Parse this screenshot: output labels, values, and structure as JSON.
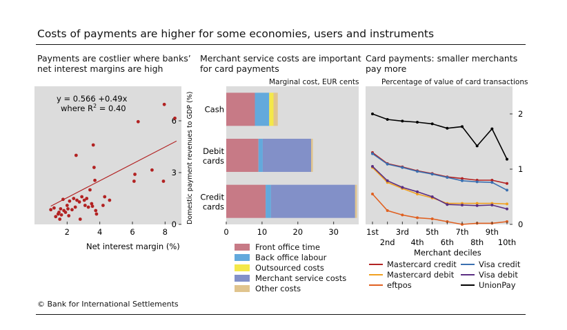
{
  "title": "Costs of payments are higher for some economies, users and instruments",
  "footer": "© Bank for International Settlements",
  "colors": {
    "panel_bg": "#dcdcdc",
    "scatter_dot": "#b22222",
    "front_office": "#c77a86",
    "back_office": "#63a9dc",
    "outsourced": "#f4e84a",
    "merchant_service": "#8290c8",
    "other": "#e0c48e",
    "mastercard_credit": "#b22222",
    "mastercard_debit": "#f0a020",
    "eftpos": "#e06020",
    "visa_credit": "#3a6fb0",
    "visa_debit": "#5a2d82",
    "unionpay": "#000000"
  },
  "panel1": {
    "title_line1": "Payments are costlier where banks’",
    "title_line2": "net interest margins are high",
    "annotation_line1": "y = 0.566 +0.49x",
    "annotation_line2_prefix": "where R",
    "annotation_line2_sup": "2",
    "annotation_line2_suffix": " = 0.40",
    "xlabel": "Net interest margin (%)",
    "ylabel": "Domestic payment revenues to GDP (%)",
    "xticks": [
      "2",
      "4",
      "6",
      "8"
    ],
    "yticks": [
      "0",
      "3",
      "6"
    ]
  },
  "panel2": {
    "title_line1": "Merchant service costs are important",
    "title_line2": "for card payments",
    "unit": "Marginal cost, EUR cents",
    "xticks": [
      "0",
      "10",
      "20",
      "30"
    ],
    "categories": [
      {
        "line1": "Cash",
        "line2": ""
      },
      {
        "line1": "Debit",
        "line2": "cards"
      },
      {
        "line1": "Credit",
        "line2": "cards"
      }
    ],
    "legend": [
      "Front office time",
      "Back office labour",
      "Outsourced costs",
      "Merchant service costs",
      "Other costs"
    ]
  },
  "panel3": {
    "title_line1": "Card payments: smaller merchants",
    "title_line2": "pay more",
    "unit": "Percentage of value of card transactions",
    "xticks_top": [
      "1st",
      "3rd",
      "5th",
      "7th",
      "9th"
    ],
    "xticks_bottom": [
      "2nd",
      "4th",
      "6th",
      "8th",
      "10th"
    ],
    "xlabel": "Merchant deciles",
    "yticks": [
      "0",
      "1",
      "2"
    ],
    "legend_col1": [
      "Mastercard credit",
      "Mastercard debit",
      "eftpos"
    ],
    "legend_col2": [
      "Visa credit",
      "Visa debit",
      "UnionPay"
    ]
  },
  "chart_data": [
    {
      "type": "scatter",
      "title": "Payments are costlier where banks’ net interest margins are high",
      "xlabel": "Net interest margin (%)",
      "ylabel": "Domestic payment revenues to GDP (%)",
      "xlim": [
        0,
        9
      ],
      "ylim": [
        0,
        8
      ],
      "grid": false,
      "points": [
        [
          1.0,
          0.85
        ],
        [
          1.2,
          0.95
        ],
        [
          1.3,
          0.45
        ],
        [
          1.45,
          0.6
        ],
        [
          1.5,
          0.7
        ],
        [
          1.55,
          0.3
        ],
        [
          1.6,
          0.9
        ],
        [
          1.65,
          0.55
        ],
        [
          1.75,
          1.45
        ],
        [
          1.8,
          0.8
        ],
        [
          1.9,
          0.7
        ],
        [
          2.0,
          1.1
        ],
        [
          2.05,
          0.9
        ],
        [
          2.1,
          0.5
        ],
        [
          2.15,
          1.35
        ],
        [
          2.3,
          0.85
        ],
        [
          2.4,
          1.5
        ],
        [
          2.5,
          1.0
        ],
        [
          2.55,
          4.0
        ],
        [
          2.6,
          1.4
        ],
        [
          2.75,
          1.3
        ],
        [
          2.8,
          0.3
        ],
        [
          2.9,
          1.6
        ],
        [
          3.05,
          1.4
        ],
        [
          3.1,
          1.1
        ],
        [
          3.2,
          1.5
        ],
        [
          3.3,
          1.0
        ],
        [
          3.4,
          2.0
        ],
        [
          3.5,
          1.2
        ],
        [
          3.55,
          1.05
        ],
        [
          3.6,
          4.6
        ],
        [
          3.65,
          3.3
        ],
        [
          3.7,
          2.55
        ],
        [
          3.75,
          0.8
        ],
        [
          3.8,
          0.6
        ],
        [
          4.2,
          1.1
        ],
        [
          4.3,
          1.6
        ],
        [
          4.6,
          1.4
        ],
        [
          6.1,
          2.5
        ],
        [
          6.15,
          2.9
        ],
        [
          6.35,
          5.95
        ],
        [
          7.2,
          3.15
        ],
        [
          7.9,
          2.5
        ],
        [
          7.95,
          6.95
        ],
        [
          8.6,
          6.15
        ]
      ],
      "trendline": {
        "intercept": 0.566,
        "slope": 0.49,
        "x_range": [
          1.0,
          8.7
        ]
      }
    },
    {
      "type": "bar",
      "orientation": "horizontal",
      "stacked": true,
      "title": "Merchant service costs are important for card payments",
      "unit": "Marginal cost, EUR cents",
      "categories": [
        "Cash",
        "Debit cards",
        "Credit cards"
      ],
      "xlim": [
        0,
        37
      ],
      "series": [
        {
          "name": "Front office time",
          "values": [
            8,
            9,
            11
          ]
        },
        {
          "name": "Back office labour",
          "values": [
            4,
            1.2,
            1.5
          ]
        },
        {
          "name": "Outsourced costs",
          "values": [
            1.2,
            0,
            0
          ]
        },
        {
          "name": "Merchant service costs",
          "values": [
            0,
            13.5,
            23.5
          ]
        },
        {
          "name": "Other costs",
          "values": [
            1.2,
            0.5,
            0.5
          ]
        }
      ]
    },
    {
      "type": "line",
      "title": "Card payments: smaller merchants pay more",
      "unit": "Percentage of value of card transactions",
      "xlabel": "Merchant deciles",
      "categories": [
        "1st",
        "2nd",
        "3rd",
        "4th",
        "5th",
        "6th",
        "7th",
        "8th",
        "9th",
        "10th"
      ],
      "ylim": [
        0,
        2.5
      ],
      "series": [
        {
          "name": "Mastercard credit",
          "values": [
            1.3,
            1.1,
            1.04,
            0.97,
            0.92,
            0.86,
            0.83,
            0.8,
            0.8,
            0.74
          ]
        },
        {
          "name": "Visa credit",
          "values": [
            1.28,
            1.09,
            1.03,
            0.96,
            0.91,
            0.85,
            0.79,
            0.77,
            0.76,
            0.62
          ]
        },
        {
          "name": "Mastercard debit",
          "values": [
            1.03,
            0.76,
            0.65,
            0.55,
            0.48,
            0.38,
            0.38,
            0.38,
            0.38,
            0.37
          ]
        },
        {
          "name": "Visa debit",
          "values": [
            1.05,
            0.79,
            0.67,
            0.59,
            0.5,
            0.36,
            0.35,
            0.34,
            0.35,
            0.28
          ]
        },
        {
          "name": "eftpos",
          "values": [
            0.55,
            0.25,
            0.17,
            0.12,
            0.1,
            0.05,
            0.0,
            0.02,
            0.02,
            0.05
          ]
        },
        {
          "name": "UnionPay",
          "values": [
            2.0,
            1.9,
            1.87,
            1.85,
            1.82,
            1.74,
            1.77,
            1.42,
            1.73,
            1.18
          ]
        }
      ]
    }
  ]
}
